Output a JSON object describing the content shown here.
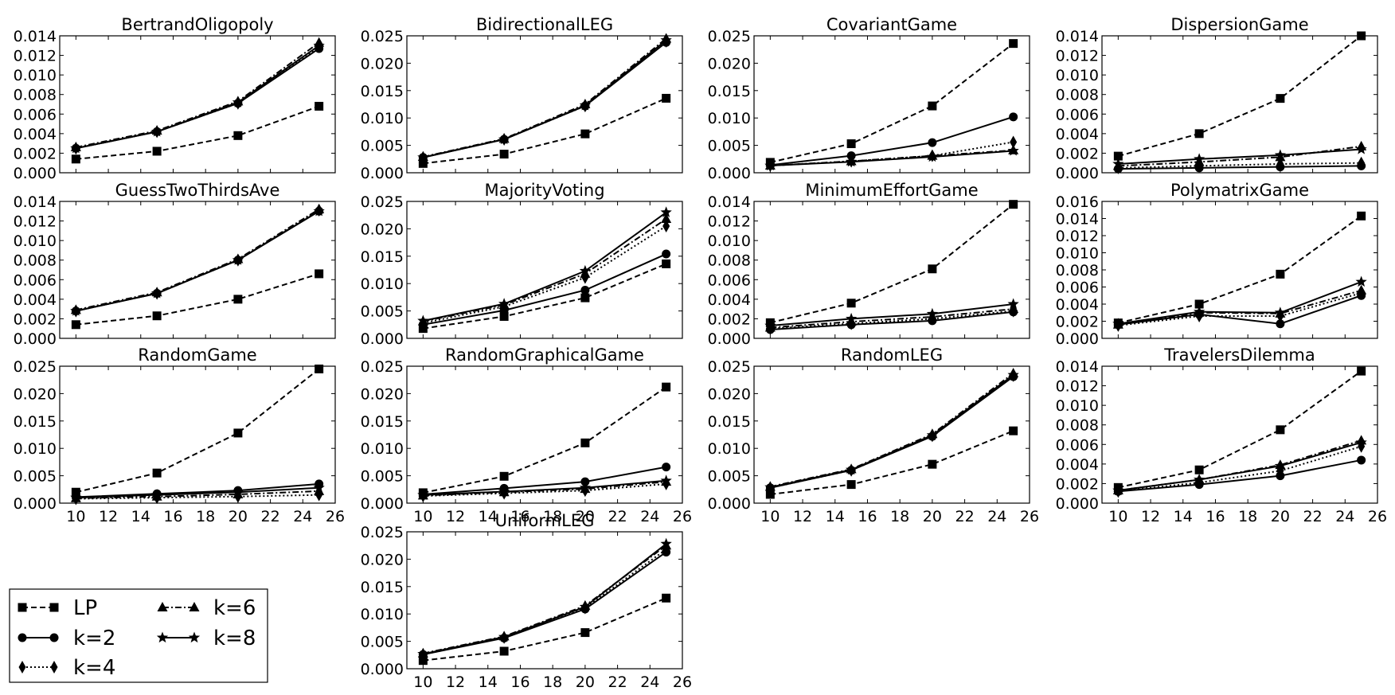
{
  "chart_data": [
    {
      "type": "line",
      "title": "BertrandOligopoly",
      "x": [
        10,
        15,
        20,
        25
      ],
      "xlim": [
        9,
        26
      ],
      "ylim": [
        0,
        0.014
      ],
      "yticks": [
        "0.000",
        "0.002",
        "0.004",
        "0.006",
        "0.008",
        "0.010",
        "0.012",
        "0.014"
      ],
      "series": [
        {
          "name": "LP",
          "values": [
            0.0014,
            0.0022,
            0.0038,
            0.0068
          ]
        },
        {
          "name": "k=2",
          "values": [
            0.0025,
            0.0042,
            0.0071,
            0.0127
          ]
        },
        {
          "name": "k=4",
          "values": [
            0.0025,
            0.0042,
            0.0071,
            0.0129
          ]
        },
        {
          "name": "k=6",
          "values": [
            0.0026,
            0.0043,
            0.0073,
            0.0133
          ]
        },
        {
          "name": "k=8",
          "values": [
            0.0025,
            0.0042,
            0.0072,
            0.013
          ]
        }
      ]
    },
    {
      "type": "line",
      "title": "BidirectionalLEG",
      "x": [
        10,
        15,
        20,
        25
      ],
      "xlim": [
        9,
        26
      ],
      "ylim": [
        0,
        0.025
      ],
      "yticks": [
        "0.000",
        "0.005",
        "0.010",
        "0.015",
        "0.020",
        "0.025"
      ],
      "series": [
        {
          "name": "LP",
          "values": [
            0.0017,
            0.0034,
            0.0071,
            0.0136
          ]
        },
        {
          "name": "k=2",
          "values": [
            0.0028,
            0.0061,
            0.0122,
            0.0238
          ]
        },
        {
          "name": "k=4",
          "values": [
            0.0028,
            0.0061,
            0.0122,
            0.024
          ]
        },
        {
          "name": "k=6",
          "values": [
            0.0029,
            0.0062,
            0.0125,
            0.0245
          ]
        },
        {
          "name": "k=8",
          "values": [
            0.0028,
            0.0061,
            0.0123,
            0.0242
          ]
        }
      ]
    },
    {
      "type": "line",
      "title": "CovariantGame",
      "x": [
        10,
        15,
        20,
        25
      ],
      "xlim": [
        9,
        26
      ],
      "ylim": [
        0,
        0.025
      ],
      "yticks": [
        "0.000",
        "0.005",
        "0.010",
        "0.015",
        "0.020",
        "0.025"
      ],
      "series": [
        {
          "name": "LP",
          "values": [
            0.0019,
            0.0053,
            0.0122,
            0.0236
          ]
        },
        {
          "name": "k=2",
          "values": [
            0.0014,
            0.0031,
            0.0055,
            0.0102
          ]
        },
        {
          "name": "k=4",
          "values": [
            0.0013,
            0.0021,
            0.0031,
            0.0056
          ]
        },
        {
          "name": "k=6",
          "values": [
            0.0013,
            0.0021,
            0.0031,
            0.0041
          ]
        },
        {
          "name": "k=8",
          "values": [
            0.0013,
            0.002,
            0.0029,
            0.004
          ]
        }
      ]
    },
    {
      "type": "line",
      "title": "DispersionGame",
      "x": [
        10,
        15,
        20,
        25
      ],
      "xlim": [
        9,
        26
      ],
      "ylim": [
        0,
        0.014
      ],
      "yticks": [
        "0.000",
        "0.002",
        "0.004",
        "0.006",
        "0.008",
        "0.010",
        "0.012",
        "0.014"
      ],
      "series": [
        {
          "name": "LP",
          "values": [
            0.0017,
            0.004,
            0.0076,
            0.014
          ]
        },
        {
          "name": "k=2",
          "values": [
            0.0004,
            0.0005,
            0.0006,
            0.0007
          ]
        },
        {
          "name": "k=4",
          "values": [
            0.0005,
            0.0007,
            0.0009,
            0.001
          ]
        },
        {
          "name": "k=6",
          "values": [
            0.0007,
            0.0011,
            0.0016,
            0.0027
          ]
        },
        {
          "name": "k=8",
          "values": [
            0.0009,
            0.0014,
            0.0018,
            0.0024
          ]
        }
      ]
    },
    {
      "type": "line",
      "title": "GuessTwoThirdsAve",
      "x": [
        10,
        15,
        20,
        25
      ],
      "xlim": [
        9,
        26
      ],
      "ylim": [
        0,
        0.014
      ],
      "yticks": [
        "0.000",
        "0.002",
        "0.004",
        "0.006",
        "0.008",
        "0.010",
        "0.012",
        "0.014"
      ],
      "series": [
        {
          "name": "LP",
          "values": [
            0.0014,
            0.0023,
            0.004,
            0.0066
          ]
        },
        {
          "name": "k=2",
          "values": [
            0.0028,
            0.0046,
            0.008,
            0.013
          ]
        },
        {
          "name": "k=4",
          "values": [
            0.0028,
            0.0046,
            0.008,
            0.0131
          ]
        },
        {
          "name": "k=6",
          "values": [
            0.0029,
            0.0047,
            0.0081,
            0.0132
          ]
        },
        {
          "name": "k=8",
          "values": [
            0.0028,
            0.0046,
            0.008,
            0.013
          ]
        }
      ]
    },
    {
      "type": "line",
      "title": "MajorityVoting",
      "x": [
        10,
        15,
        20,
        25
      ],
      "xlim": [
        9,
        26
      ],
      "ylim": [
        0,
        0.025
      ],
      "yticks": [
        "0.000",
        "0.005",
        "0.010",
        "0.015",
        "0.020",
        "0.025"
      ],
      "series": [
        {
          "name": "LP",
          "values": [
            0.0018,
            0.004,
            0.0074,
            0.0136
          ]
        },
        {
          "name": "k=2",
          "values": [
            0.0025,
            0.0051,
            0.0088,
            0.0154
          ]
        },
        {
          "name": "k=4",
          "values": [
            0.0028,
            0.0058,
            0.0111,
            0.0205
          ]
        },
        {
          "name": "k=6",
          "values": [
            0.0031,
            0.0061,
            0.0118,
            0.0218
          ]
        },
        {
          "name": "k=8",
          "values": [
            0.0032,
            0.0063,
            0.0123,
            0.023
          ]
        }
      ]
    },
    {
      "type": "line",
      "title": "MinimumEffortGame",
      "x": [
        10,
        15,
        20,
        25
      ],
      "xlim": [
        9,
        26
      ],
      "ylim": [
        0,
        0.014
      ],
      "yticks": [
        "0.000",
        "0.002",
        "0.004",
        "0.006",
        "0.008",
        "0.010",
        "0.012",
        "0.014"
      ],
      "series": [
        {
          "name": "LP",
          "values": [
            0.0016,
            0.0036,
            0.0071,
            0.0137
          ]
        },
        {
          "name": "k=2",
          "values": [
            0.0009,
            0.0014,
            0.0018,
            0.0027
          ]
        },
        {
          "name": "k=4",
          "values": [
            0.001,
            0.0015,
            0.002,
            0.0028
          ]
        },
        {
          "name": "k=6",
          "values": [
            0.0011,
            0.0017,
            0.0022,
            0.003
          ]
        },
        {
          "name": "k=8",
          "values": [
            0.0013,
            0.002,
            0.0025,
            0.0035
          ]
        }
      ]
    },
    {
      "type": "line",
      "title": "PolymatrixGame",
      "x": [
        10,
        15,
        20,
        25
      ],
      "xlim": [
        9,
        26
      ],
      "ylim": [
        0,
        0.016
      ],
      "yticks": [
        "0.000",
        "0.002",
        "0.004",
        "0.006",
        "0.008",
        "0.010",
        "0.012",
        "0.014",
        "0.016"
      ],
      "series": [
        {
          "name": "LP",
          "values": [
            0.0018,
            0.004,
            0.0075,
            0.0143
          ]
        },
        {
          "name": "k=2",
          "values": [
            0.0016,
            0.0028,
            0.0017,
            0.005
          ]
        },
        {
          "name": "k=4",
          "values": [
            0.0015,
            0.0026,
            0.0026,
            0.0053
          ]
        },
        {
          "name": "k=6",
          "values": [
            0.0016,
            0.003,
            0.0029,
            0.0056
          ]
        },
        {
          "name": "k=8",
          "values": [
            0.0017,
            0.0031,
            0.003,
            0.0066
          ]
        }
      ]
    },
    {
      "type": "line",
      "title": "RandomGame",
      "x": [
        10,
        15,
        20,
        25
      ],
      "xlim": [
        9,
        26
      ],
      "ylim": [
        0,
        0.025
      ],
      "yticks": [
        "0.000",
        "0.005",
        "0.010",
        "0.015",
        "0.020",
        "0.025"
      ],
      "series": [
        {
          "name": "LP",
          "values": [
            0.002,
            0.0055,
            0.0128,
            0.0245
          ]
        },
        {
          "name": "k=2",
          "values": [
            0.0011,
            0.0017,
            0.0023,
            0.0035
          ]
        },
        {
          "name": "k=4",
          "values": [
            0.0008,
            0.001,
            0.0012,
            0.0015
          ]
        },
        {
          "name": "k=6",
          "values": [
            0.0009,
            0.0012,
            0.0016,
            0.0022
          ]
        },
        {
          "name": "k=8",
          "values": [
            0.001,
            0.0015,
            0.002,
            0.0028
          ]
        }
      ]
    },
    {
      "type": "line",
      "title": "RandomGraphicalGame",
      "x": [
        10,
        15,
        20,
        25
      ],
      "xlim": [
        9,
        26
      ],
      "ylim": [
        0,
        0.025
      ],
      "yticks": [
        "0.000",
        "0.005",
        "0.010",
        "0.015",
        "0.020",
        "0.025"
      ],
      "series": [
        {
          "name": "LP",
          "values": [
            0.0019,
            0.0049,
            0.011,
            0.0212
          ]
        },
        {
          "name": "k=2",
          "values": [
            0.0016,
            0.0027,
            0.0039,
            0.0066
          ]
        },
        {
          "name": "k=4",
          "values": [
            0.0013,
            0.0018,
            0.0023,
            0.0035
          ]
        },
        {
          "name": "k=6",
          "values": [
            0.0014,
            0.002,
            0.0026,
            0.0039
          ]
        },
        {
          "name": "k=8",
          "values": [
            0.0015,
            0.0021,
            0.0028,
            0.0041
          ]
        }
      ]
    },
    {
      "type": "line",
      "title": "RandomLEG",
      "x": [
        10,
        15,
        20,
        25
      ],
      "xlim": [
        9,
        26
      ],
      "ylim": [
        0,
        0.025
      ],
      "yticks": [
        "0.000",
        "0.005",
        "0.010",
        "0.015",
        "0.020",
        "0.025"
      ],
      "series": [
        {
          "name": "LP",
          "values": [
            0.0016,
            0.0034,
            0.0071,
            0.0132
          ]
        },
        {
          "name": "k=2",
          "values": [
            0.0028,
            0.006,
            0.0122,
            0.0231
          ]
        },
        {
          "name": "k=4",
          "values": [
            0.0028,
            0.006,
            0.0123,
            0.0233
          ]
        },
        {
          "name": "k=6",
          "values": [
            0.003,
            0.0062,
            0.0126,
            0.0237
          ]
        },
        {
          "name": "k=8",
          "values": [
            0.0029,
            0.0061,
            0.0124,
            0.0234
          ]
        }
      ]
    },
    {
      "type": "line",
      "title": "TravelersDilemma",
      "x": [
        10,
        15,
        20,
        25
      ],
      "xlim": [
        9,
        26
      ],
      "ylim": [
        0,
        0.014
      ],
      "yticks": [
        "0.000",
        "0.002",
        "0.004",
        "0.006",
        "0.008",
        "0.010",
        "0.012",
        "0.014"
      ],
      "series": [
        {
          "name": "LP",
          "values": [
            0.0016,
            0.0034,
            0.0075,
            0.0135
          ]
        },
        {
          "name": "k=2",
          "values": [
            0.0012,
            0.0019,
            0.0028,
            0.0044
          ]
        },
        {
          "name": "k=4",
          "values": [
            0.0012,
            0.0021,
            0.0033,
            0.0058
          ]
        },
        {
          "name": "k=6",
          "values": [
            0.0013,
            0.0024,
            0.0039,
            0.0064
          ]
        },
        {
          "name": "k=8",
          "values": [
            0.0013,
            0.0024,
            0.0038,
            0.0062
          ]
        }
      ]
    },
    {
      "type": "line",
      "title": "UniformLEG",
      "x": [
        10,
        15,
        20,
        25
      ],
      "xlim": [
        9,
        26
      ],
      "ylim": [
        0,
        0.025
      ],
      "yticks": [
        "0.000",
        "0.005",
        "0.010",
        "0.015",
        "0.020",
        "0.025"
      ],
      "series": [
        {
          "name": "LP",
          "values": [
            0.0015,
            0.0032,
            0.0066,
            0.0129
          ]
        },
        {
          "name": "k=2",
          "values": [
            0.0026,
            0.0056,
            0.0109,
            0.0213
          ]
        },
        {
          "name": "k=4",
          "values": [
            0.0026,
            0.0057,
            0.0111,
            0.0218
          ]
        },
        {
          "name": "k=6",
          "values": [
            0.0028,
            0.0059,
            0.0115,
            0.0225
          ]
        },
        {
          "name": "k=8",
          "values": [
            0.0027,
            0.0058,
            0.0113,
            0.0228
          ]
        }
      ]
    }
  ],
  "xtick_labels": [
    "10",
    "12",
    "14",
    "16",
    "18",
    "20",
    "22",
    "24",
    "26"
  ],
  "legend": {
    "items": [
      {
        "label": "LP",
        "style": "dashed",
        "marker": "square"
      },
      {
        "label": "k=2",
        "style": "solid",
        "marker": "circle"
      },
      {
        "label": "k=4",
        "style": "dotted",
        "marker": "diamond"
      },
      {
        "label": "k=6",
        "style": "dashdot",
        "marker": "triangle"
      },
      {
        "label": "k=8",
        "style": "solid",
        "marker": "star"
      }
    ]
  },
  "colors": {
    "line": "#000000",
    "background": "#ffffff"
  }
}
